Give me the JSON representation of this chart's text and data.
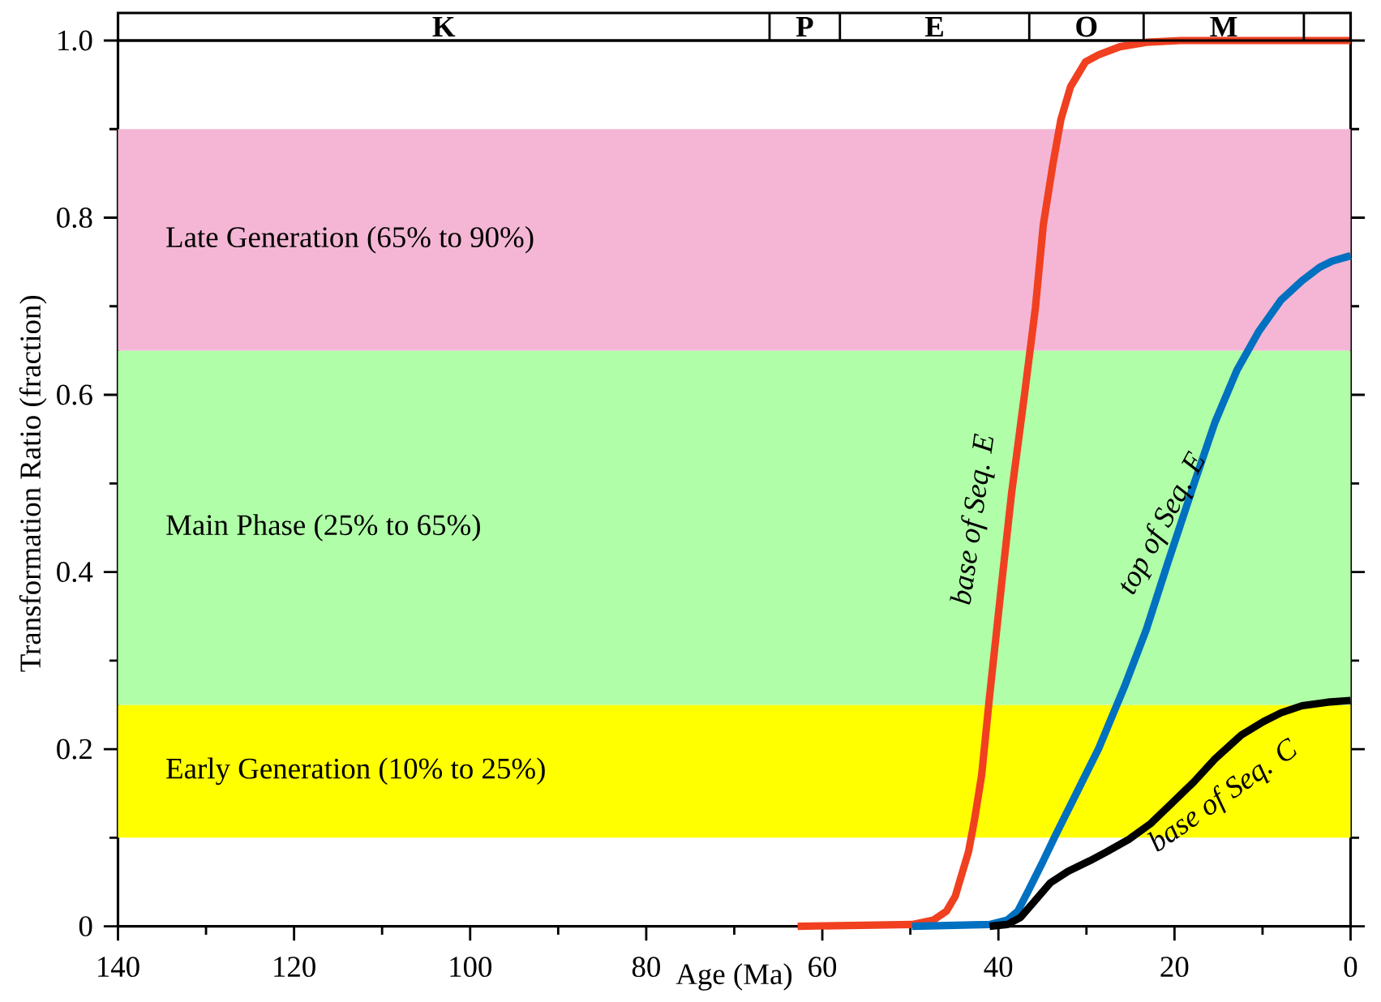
{
  "chart_data": {
    "type": "line",
    "xlabel": "Age (Ma)",
    "ylabel": "Transformation Ratio (fraction)",
    "xlim": [
      140,
      0
    ],
    "ylim": [
      0,
      1.0
    ],
    "xticks": [
      140,
      120,
      100,
      80,
      60,
      40,
      20,
      0
    ],
    "yticks": [
      0,
      0.2,
      0.4,
      0.6,
      0.8,
      {
        "value": 1.0,
        "label": "1.0"
      }
    ],
    "legend": false,
    "grid": false,
    "marker": "none",
    "line_style": "solid",
    "bands": [
      {
        "axis": "y",
        "from": 0.1,
        "to": 0.25,
        "label": "Early Generation (10% to 25%)",
        "color": "#ffff00"
      },
      {
        "axis": "y",
        "from": 0.25,
        "to": 0.65,
        "label": "Main Phase (25% to 65%)",
        "color": "#b0ffa8"
      },
      {
        "axis": "y",
        "from": 0.65,
        "to": 0.9,
        "label": "Late Generation (65% to 90%)",
        "color": "#f4b6d4"
      }
    ],
    "annotations": [
      "K",
      "P",
      "E",
      "O",
      "M"
    ],
    "series": [
      {
        "name": "base of Seq. E",
        "color": "#f04020",
        "x": [
          62.8,
          49.8,
          47.4,
          45.9,
          44.9,
          43.4,
          42.7,
          41.9,
          41.0,
          39.5,
          38.5,
          37.0,
          35.8,
          34.9,
          33.8,
          32.9,
          31.8,
          30.1,
          28.6,
          26.2,
          23.2,
          19.3,
          0
        ],
        "values": [
          0,
          0.002,
          0.007,
          0.017,
          0.034,
          0.084,
          0.121,
          0.171,
          0.26,
          0.399,
          0.489,
          0.603,
          0.698,
          0.792,
          0.861,
          0.911,
          0.948,
          0.976,
          0.984,
          0.993,
          0.998,
          1.0,
          1.0
        ]
      },
      {
        "name": "top of Seq. E",
        "color": "#0070c0",
        "x": [
          49.8,
          41.0,
          39.0,
          37.8,
          36.5,
          35.0,
          33.6,
          31.1,
          28.6,
          25.7,
          23.2,
          20.8,
          17.8,
          15.4,
          12.9,
          10.4,
          7.9,
          5.5,
          3.5,
          2.1,
          0
        ],
        "values": [
          0,
          0.002,
          0.007,
          0.017,
          0.042,
          0.072,
          0.101,
          0.151,
          0.201,
          0.27,
          0.335,
          0.409,
          0.499,
          0.569,
          0.628,
          0.672,
          0.707,
          0.729,
          0.744,
          0.751,
          0.757
        ]
      },
      {
        "name": "base of Seq. C",
        "color": "#000000",
        "x": [
          41.0,
          39.0,
          37.5,
          36.0,
          34.1,
          32.1,
          29.6,
          27.7,
          25.2,
          22.7,
          20.3,
          17.8,
          15.4,
          12.4,
          9.9,
          7.9,
          5.5,
          2.6,
          0
        ],
        "values": [
          0,
          0.002,
          0.01,
          0.027,
          0.049,
          0.062,
          0.074,
          0.084,
          0.098,
          0.116,
          0.139,
          0.163,
          0.189,
          0.216,
          0.231,
          0.241,
          0.249,
          0.253,
          0.255
        ]
      }
    ]
  }
}
